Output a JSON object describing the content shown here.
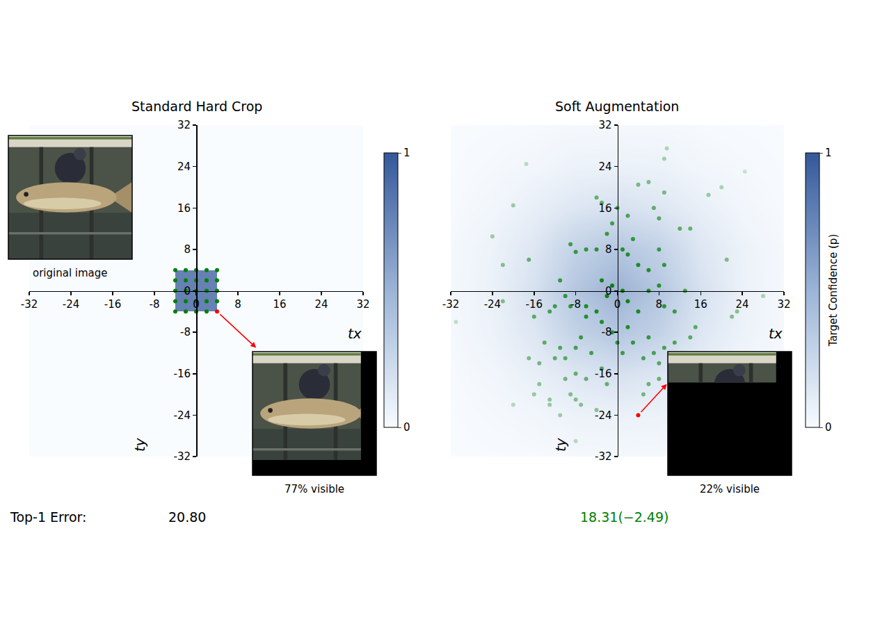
{
  "figure": {
    "row_label": "Top-1 Error:"
  },
  "chart_data": [
    {
      "type": "scatter",
      "title": "Standard Hard Crop",
      "x_label": "tx",
      "y_label": "ty",
      "xlim": [
        -32,
        32
      ],
      "ylim": [
        -32,
        32
      ],
      "xticks": [
        -32,
        -24,
        -16,
        -8,
        0,
        8,
        16,
        24,
        32
      ],
      "yticks": [
        -32,
        -24,
        -16,
        -8,
        0,
        8,
        16,
        24,
        32
      ],
      "color": "green",
      "x": [
        -4,
        -2,
        0,
        2,
        4,
        -4,
        -2,
        0,
        2,
        4,
        -4,
        -2,
        0,
        2,
        4,
        -4,
        -2,
        0,
        2,
        4,
        -4,
        -2,
        0,
        2
      ],
      "y": [
        4,
        4,
        4,
        4,
        4,
        2,
        2,
        2,
        2,
        2,
        0,
        0,
        0,
        0,
        0,
        -2,
        -2,
        -2,
        -2,
        -2,
        -4,
        -4,
        -4,
        -4
      ],
      "highlight": {
        "x": 4,
        "y": -4,
        "color": "red",
        "inset_label": "77% visible"
      },
      "original_image_label": "original image",
      "top1_error": "20.80",
      "heatmap": {
        "x": [
          -32,
          -4,
          4,
          32
        ],
        "y": [
          -32,
          -4,
          4,
          32
        ],
        "z": [
          [
            0,
            0,
            0
          ],
          [
            0,
            1,
            0
          ],
          [
            0,
            0,
            0
          ]
        ],
        "zlim": [
          0,
          1
        ],
        "zticks": [
          0,
          1
        ]
      }
    },
    {
      "type": "scatter",
      "title": "Soft Augmentation",
      "x_label": "tx",
      "y_label": "ty",
      "xlim": [
        -32,
        32
      ],
      "ylim": [
        -32,
        32
      ],
      "xticks": [
        -32,
        -24,
        -16,
        -8,
        0,
        8,
        16,
        24,
        32
      ],
      "yticks": [
        -32,
        -24,
        -16,
        -8,
        0,
        8,
        16,
        24,
        32
      ],
      "color": "green",
      "x": [
        -17.5,
        9.5,
        9,
        24.5,
        -20,
        -4,
        -3,
        0,
        2,
        -1,
        -2,
        4,
        6,
        9,
        -24,
        -17,
        -22,
        -9,
        -8,
        -6,
        -4,
        1,
        2,
        3,
        7,
        8,
        12,
        14,
        17.5,
        8,
        9,
        6,
        4,
        21,
        -11,
        -3,
        -1,
        1,
        -2,
        6,
        8,
        13,
        -10,
        -9,
        -12,
        -6,
        -4,
        2,
        4,
        9,
        11,
        -22,
        28,
        -31,
        -13,
        -16,
        -6,
        -3,
        -1,
        2,
        0,
        3,
        1,
        6,
        9,
        11,
        15,
        14,
        22,
        23,
        -7,
        -8,
        -11,
        -12,
        -10,
        -14,
        -15,
        -17,
        -5,
        -3,
        5,
        7,
        8,
        -10,
        -8,
        -6,
        -15,
        -16,
        -13,
        -9,
        -8,
        -7,
        -4,
        -11,
        -2,
        6,
        5,
        8,
        -20,
        -8,
        12,
        20,
        -13
      ],
      "y": [
        24.5,
        27.5,
        25.5,
        23,
        16.5,
        18,
        17,
        16,
        14.5,
        13,
        11,
        20.5,
        21,
        19,
        10.5,
        6,
        5,
        9,
        7.5,
        8,
        8,
        8,
        7,
        10,
        16,
        14,
        12,
        12,
        18.5,
        8,
        5,
        4,
        5,
        6,
        2,
        2,
        1,
        0,
        -1,
        0,
        1,
        0,
        -1,
        -3,
        -3,
        -3,
        -4,
        -2,
        -4,
        -3,
        -4,
        -2,
        -1,
        -6,
        -4,
        -5,
        -5,
        -6,
        -8,
        -7,
        -10,
        -10,
        -12,
        -9,
        -11,
        -10,
        -7,
        -9,
        -5,
        -4,
        -9,
        -11,
        -11,
        -13,
        -13,
        -10,
        -14,
        -13,
        -12,
        -15,
        -13,
        -12,
        -14,
        -17,
        -16,
        -17,
        -18,
        -20,
        -22,
        -20,
        -21,
        -22,
        -23,
        -24,
        -18,
        -18,
        -20,
        -17,
        -22,
        -29,
        -13,
        20,
        -21
      ],
      "highlight": {
        "x": 4,
        "y": -24,
        "color": "red",
        "inset_label": "22% visible"
      },
      "top1_error": "18.31(−2.49)",
      "top1_error_color": "green",
      "heatmap": {
        "x": [
          -32,
          -24,
          -16,
          -8,
          0,
          8,
          16,
          24,
          32
        ],
        "y": [
          -32,
          -24,
          -16,
          -8,
          0,
          8,
          16,
          24,
          32
        ],
        "z": [
          [
            0.005,
            0.01,
            0.02,
            0.03,
            0.03,
            0.03,
            0.02,
            0.01,
            0.005
          ],
          [
            0.01,
            0.03,
            0.05,
            0.09,
            0.1,
            0.09,
            0.05,
            0.03,
            0.01
          ],
          [
            0.02,
            0.05,
            0.12,
            0.2,
            0.25,
            0.2,
            0.12,
            0.05,
            0.02
          ],
          [
            0.03,
            0.09,
            0.2,
            0.4,
            0.5,
            0.4,
            0.2,
            0.09,
            0.03
          ],
          [
            0.03,
            0.1,
            0.25,
            0.5,
            0.65,
            0.5,
            0.25,
            0.1,
            0.03
          ],
          [
            0.03,
            0.09,
            0.2,
            0.4,
            0.5,
            0.4,
            0.2,
            0.09,
            0.03
          ],
          [
            0.02,
            0.05,
            0.12,
            0.2,
            0.25,
            0.2,
            0.12,
            0.05,
            0.02
          ],
          [
            0.01,
            0.03,
            0.05,
            0.09,
            0.1,
            0.09,
            0.05,
            0.03,
            0.01
          ],
          [
            0.005,
            0.01,
            0.02,
            0.03,
            0.03,
            0.03,
            0.02,
            0.01,
            0.005
          ]
        ],
        "zlim": [
          0,
          1
        ],
        "zticks": [
          0,
          1
        ],
        "colorbar_title": "Target Confidence (p)"
      }
    }
  ]
}
